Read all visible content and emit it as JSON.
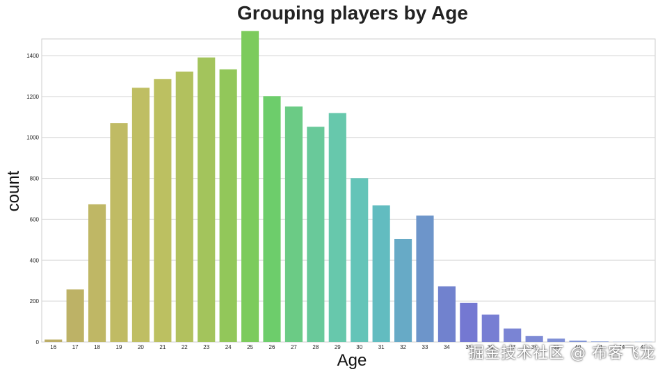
{
  "chart_data": {
    "type": "bar",
    "title": "Grouping players by Age",
    "xlabel": "Age",
    "ylabel": "count",
    "categories": [
      "16",
      "17",
      "18",
      "19",
      "20",
      "21",
      "22",
      "23",
      "24",
      "25",
      "26",
      "27",
      "28",
      "29",
      "30",
      "31",
      "32",
      "33",
      "34",
      "35",
      "36",
      "37",
      "38",
      "39",
      "40",
      "41",
      "44",
      "47"
    ],
    "values": [
      12,
      257,
      673,
      1070,
      1243,
      1285,
      1322,
      1391,
      1333,
      1520,
      1202,
      1151,
      1052,
      1119,
      801,
      668,
      503,
      618,
      272,
      191,
      134,
      66,
      30,
      17,
      7,
      3,
      1,
      1
    ],
    "colors": [
      "#bcad67",
      "#bdb266",
      "#bfb765",
      "#c0bb64",
      "#bfbe63",
      "#bcc061",
      "#b2c15e",
      "#a3c45c",
      "#92c75a",
      "#7ccb5c",
      "#6dcd6b",
      "#6bcb85",
      "#69c99a",
      "#67c8ac",
      "#64c4b8",
      "#62bcc0",
      "#67aac6",
      "#6d95ca",
      "#7182ce",
      "#7478d2",
      "#777ed3",
      "#7a84d4",
      "#7d8ad5",
      "#8090d6",
      "#8396d7",
      "#869cd8",
      "#89a2d9",
      "#8ca8da"
    ],
    "yticks": [
      0,
      200,
      400,
      600,
      800,
      1000,
      1200,
      1400
    ],
    "ylim": [
      0,
      1600
    ],
    "grid": true
  },
  "watermark": "掘金技术社区 @ 布客飞龙"
}
